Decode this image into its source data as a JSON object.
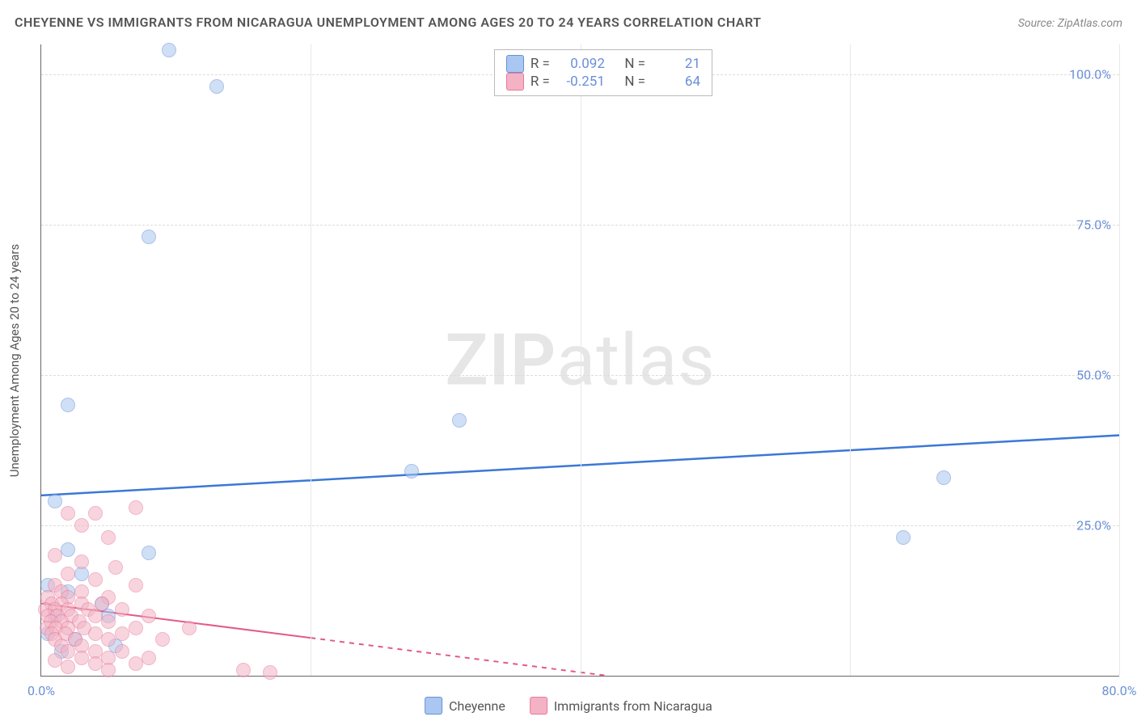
{
  "title": "CHEYENNE VS IMMIGRANTS FROM NICARAGUA UNEMPLOYMENT AMONG AGES 20 TO 24 YEARS CORRELATION CHART",
  "source": "Source: ZipAtlas.com",
  "watermark_zip": "ZIP",
  "watermark_atlas": "atlas",
  "y_axis_label": "Unemployment Among Ages 20 to 24 years",
  "chart": {
    "type": "scatter",
    "xlim": [
      0,
      80
    ],
    "ylim": [
      0,
      105
    ],
    "x_ticks": [
      0,
      20,
      40,
      60,
      80
    ],
    "y_ticks": [
      25,
      50,
      75,
      100
    ],
    "x_tick_labels": [
      "0.0%",
      "",
      "",
      "",
      "80.0%"
    ],
    "y_tick_labels": [
      "25.0%",
      "50.0%",
      "75.0%",
      "100.0%"
    ],
    "grid_color": "#dddddd",
    "background_color": "#ffffff",
    "marker_radius": 9,
    "marker_opacity": 0.55,
    "title_fontsize": 16,
    "axis_label_fontsize": 15,
    "tick_label_fontsize": 16,
    "tick_label_color": "#6a8fd8"
  },
  "series": [
    {
      "name": "Cheyenne",
      "fill": "#a9c7f0",
      "stroke": "#6a8fd8",
      "line_color": "#3b78d6",
      "line_width": 2.5,
      "reg_start": {
        "x": 0,
        "y": 30
      },
      "reg_end": {
        "x": 80,
        "y": 40
      },
      "correlation": {
        "R": "0.092",
        "N": "21"
      },
      "points": [
        {
          "x": 9.5,
          "y": 104
        },
        {
          "x": 13,
          "y": 98
        },
        {
          "x": 8,
          "y": 73
        },
        {
          "x": 2,
          "y": 45
        },
        {
          "x": 31,
          "y": 42.5
        },
        {
          "x": 27.5,
          "y": 34
        },
        {
          "x": 67,
          "y": 33
        },
        {
          "x": 1,
          "y": 29
        },
        {
          "x": 64,
          "y": 23
        },
        {
          "x": 2,
          "y": 21
        },
        {
          "x": 8,
          "y": 20.5
        },
        {
          "x": 3,
          "y": 17
        },
        {
          "x": 0.5,
          "y": 15
        },
        {
          "x": 2,
          "y": 14
        },
        {
          "x": 4.5,
          "y": 12
        },
        {
          "x": 1,
          "y": 10
        },
        {
          "x": 5,
          "y": 10
        },
        {
          "x": 0.5,
          "y": 7
        },
        {
          "x": 2.5,
          "y": 6
        },
        {
          "x": 5.5,
          "y": 5
        },
        {
          "x": 1.5,
          "y": 4
        }
      ]
    },
    {
      "name": "Immigrants from Nicaragua",
      "fill": "#f3b3c4",
      "stroke": "#e67a9b",
      "line_color": "#e35a87",
      "line_width": 2,
      "reg_start": {
        "x": 0,
        "y": 12
      },
      "reg_end": {
        "x": 42,
        "y": 0
      },
      "dash_start": {
        "x": 20,
        "y": 6.3
      },
      "dash_end": {
        "x": 42,
        "y": 0
      },
      "correlation": {
        "R": "-0.251",
        "N": "64"
      },
      "points": [
        {
          "x": 2,
          "y": 27
        },
        {
          "x": 4,
          "y": 27
        },
        {
          "x": 7,
          "y": 28
        },
        {
          "x": 3,
          "y": 25
        },
        {
          "x": 5,
          "y": 23
        },
        {
          "x": 1,
          "y": 20
        },
        {
          "x": 3,
          "y": 19
        },
        {
          "x": 5.5,
          "y": 18
        },
        {
          "x": 2,
          "y": 17
        },
        {
          "x": 4,
          "y": 16
        },
        {
          "x": 7,
          "y": 15
        },
        {
          "x": 1,
          "y": 15
        },
        {
          "x": 1.5,
          "y": 14
        },
        {
          "x": 3,
          "y": 14
        },
        {
          "x": 0.5,
          "y": 13
        },
        {
          "x": 2,
          "y": 13
        },
        {
          "x": 5,
          "y": 13
        },
        {
          "x": 0.8,
          "y": 12
        },
        {
          "x": 1.5,
          "y": 12
        },
        {
          "x": 3,
          "y": 12
        },
        {
          "x": 4.5,
          "y": 12
        },
        {
          "x": 0.3,
          "y": 11
        },
        {
          "x": 1,
          "y": 11
        },
        {
          "x": 2,
          "y": 11
        },
        {
          "x": 3.5,
          "y": 11
        },
        {
          "x": 6,
          "y": 11
        },
        {
          "x": 0.5,
          "y": 10
        },
        {
          "x": 1.2,
          "y": 10
        },
        {
          "x": 2.2,
          "y": 10
        },
        {
          "x": 4,
          "y": 10
        },
        {
          "x": 8,
          "y": 10
        },
        {
          "x": 0.7,
          "y": 9
        },
        {
          "x": 1.5,
          "y": 9
        },
        {
          "x": 2.8,
          "y": 9
        },
        {
          "x": 5,
          "y": 9
        },
        {
          "x": 0.4,
          "y": 8
        },
        {
          "x": 1.1,
          "y": 8
        },
        {
          "x": 2,
          "y": 8
        },
        {
          "x": 3.2,
          "y": 8
        },
        {
          "x": 7,
          "y": 8
        },
        {
          "x": 0.8,
          "y": 7
        },
        {
          "x": 1.8,
          "y": 7
        },
        {
          "x": 4,
          "y": 7
        },
        {
          "x": 6,
          "y": 7
        },
        {
          "x": 11,
          "y": 8
        },
        {
          "x": 1,
          "y": 6
        },
        {
          "x": 2.5,
          "y": 6
        },
        {
          "x": 5,
          "y": 6
        },
        {
          "x": 9,
          "y": 6
        },
        {
          "x": 1.5,
          "y": 5
        },
        {
          "x": 3,
          "y": 5
        },
        {
          "x": 4,
          "y": 4
        },
        {
          "x": 2,
          "y": 4
        },
        {
          "x": 6,
          "y": 4
        },
        {
          "x": 3,
          "y": 3
        },
        {
          "x": 5,
          "y": 3
        },
        {
          "x": 8,
          "y": 3
        },
        {
          "x": 1,
          "y": 2.5
        },
        {
          "x": 4,
          "y": 2
        },
        {
          "x": 7,
          "y": 2
        },
        {
          "x": 2,
          "y": 1.5
        },
        {
          "x": 5,
          "y": 1
        },
        {
          "x": 15,
          "y": 1
        },
        {
          "x": 17,
          "y": 0.5
        }
      ]
    }
  ],
  "legend_corr": {
    "r_label": "R =",
    "n_label": "N ="
  }
}
